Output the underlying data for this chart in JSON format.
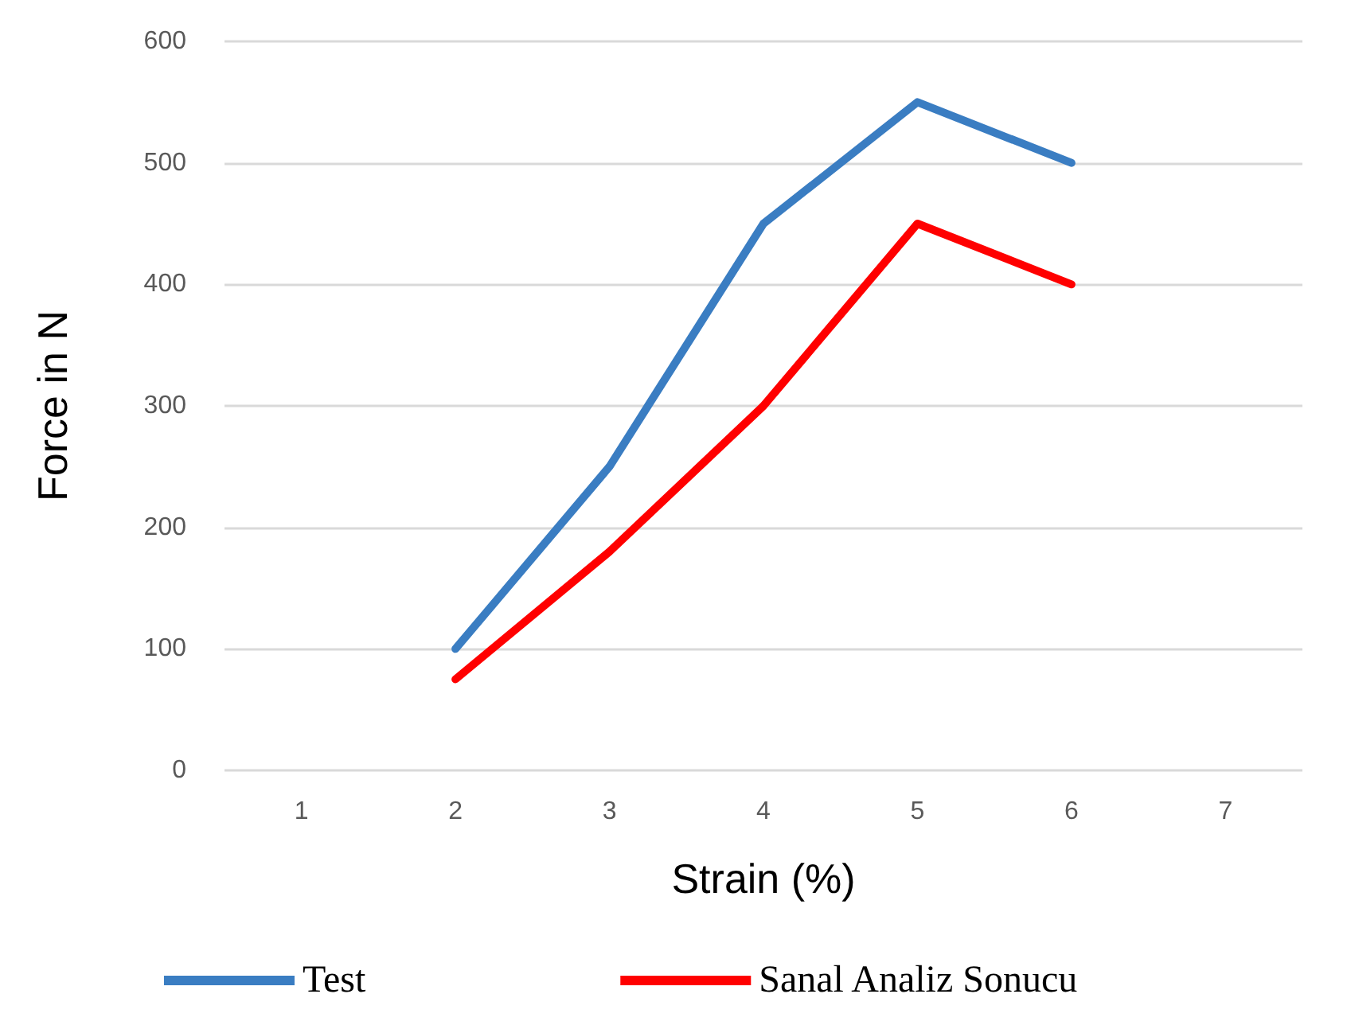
{
  "chart_data": {
    "type": "line",
    "xlabel": "Strain (%)",
    "ylabel": "Force in N",
    "categories": [
      "1",
      "2",
      "3",
      "4",
      "5",
      "6",
      "7"
    ],
    "series": [
      {
        "name": "Test",
        "color": "#3a7dc2",
        "values": [
          null,
          100,
          250,
          450,
          550,
          500,
          null
        ]
      },
      {
        "name": "Sanal Analiz Sonucu",
        "color": "#ff0000",
        "values": [
          null,
          75,
          180,
          300,
          450,
          400,
          null
        ]
      }
    ],
    "ylim": [
      0,
      600
    ],
    "yticks": [
      0,
      100,
      200,
      300,
      400,
      500,
      600
    ],
    "grid": "y",
    "legend": "bottom",
    "marker": "none",
    "line_style": "solid"
  }
}
